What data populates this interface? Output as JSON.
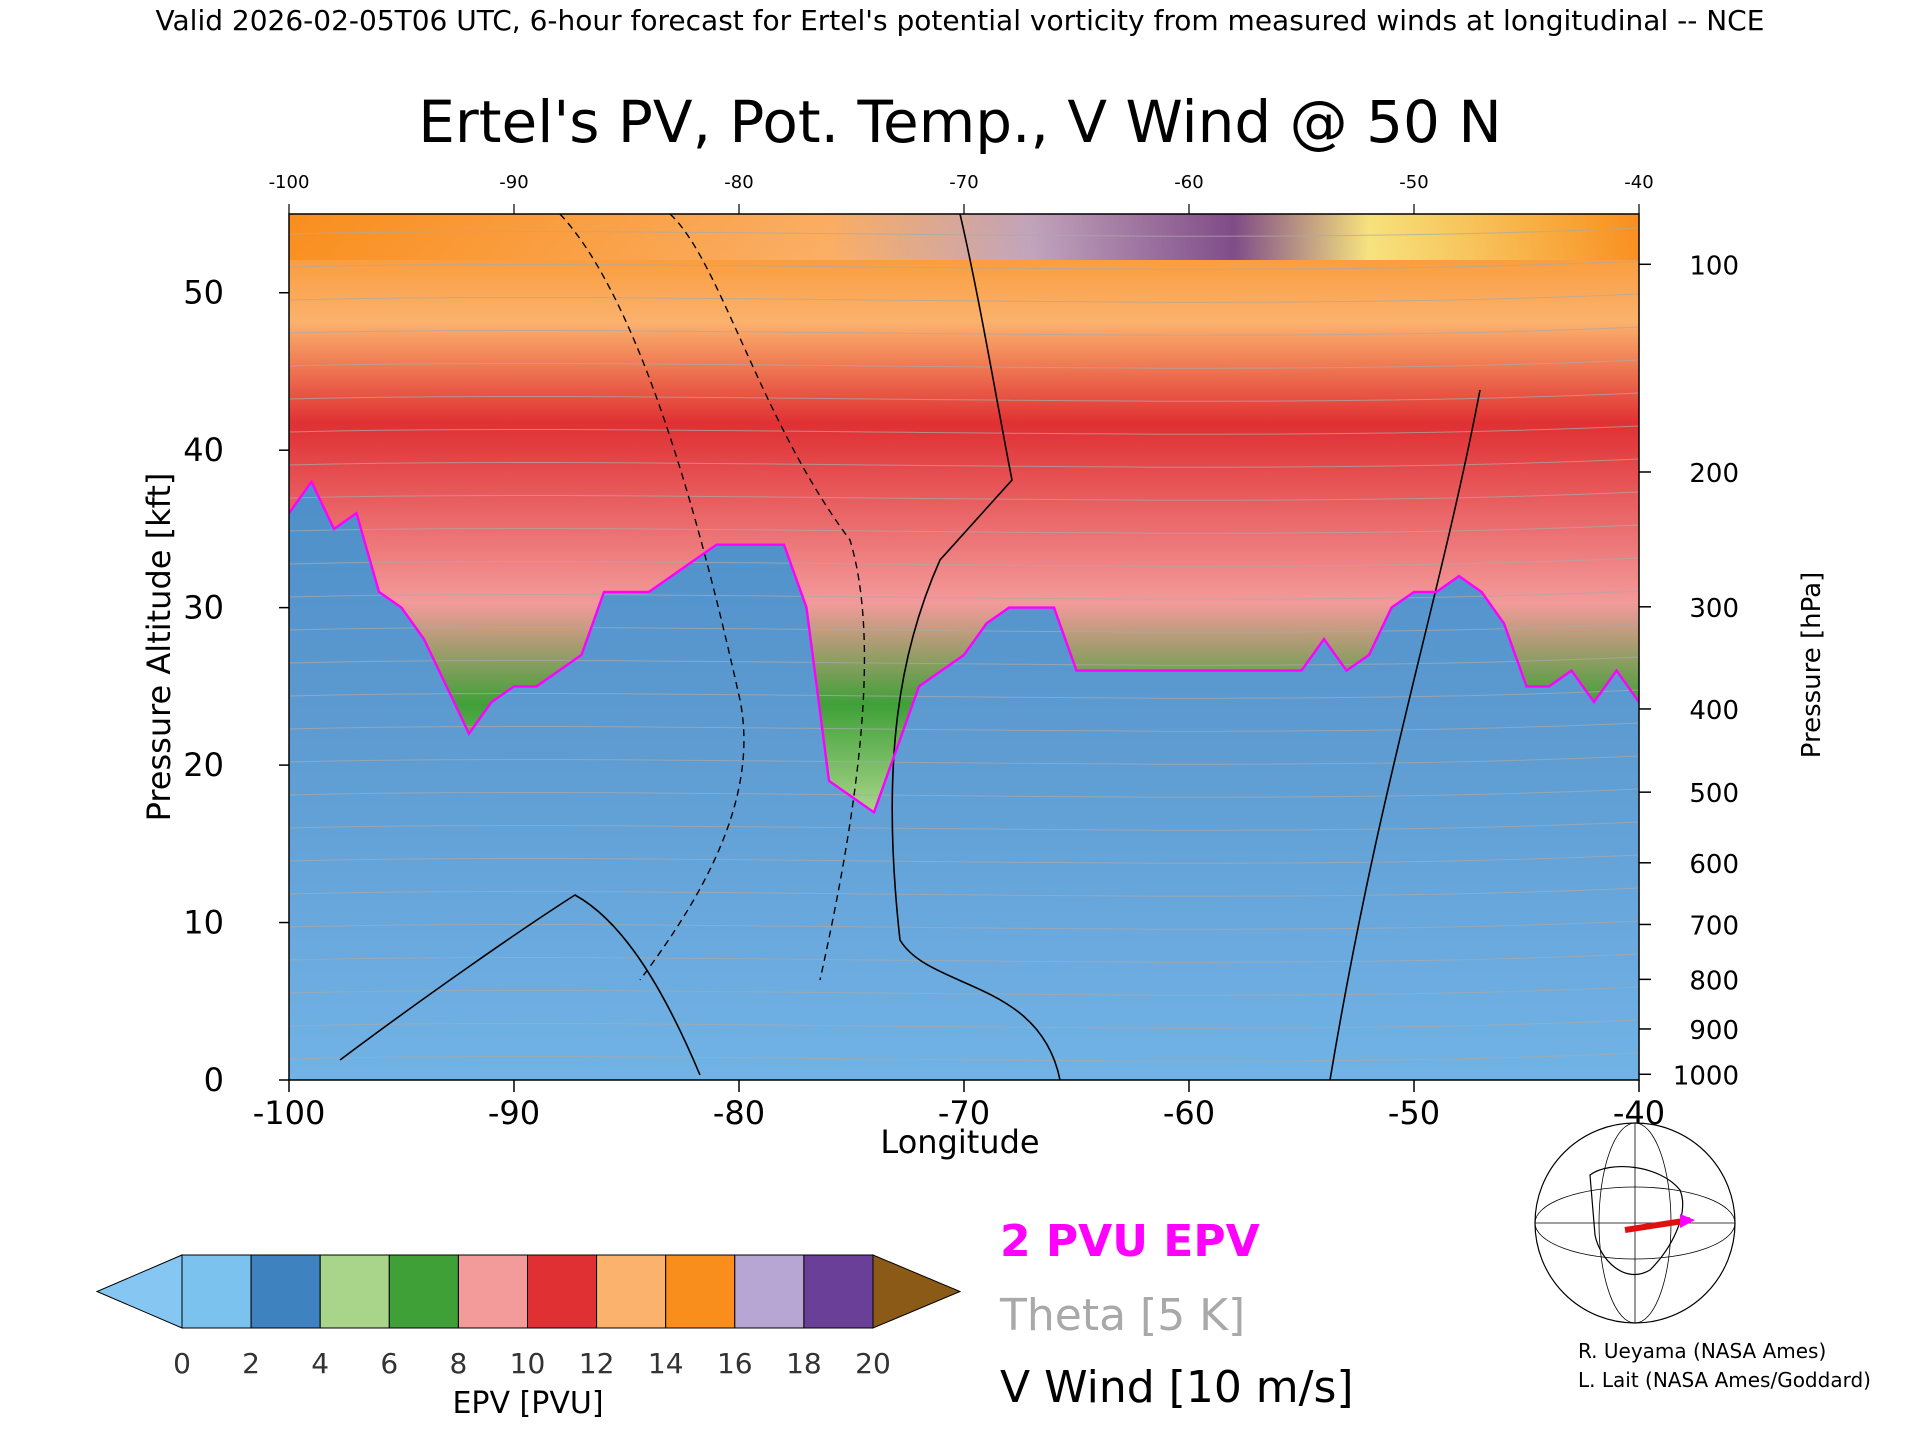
{
  "header": {
    "caption": "Valid 2026-02-05T06 UTC, 6-hour forecast for Ertel's potential vorticity from measured winds at longitudinal -- NCE"
  },
  "chart_data": {
    "type": "heatmap",
    "title": "Ertel's PV, Pot. Temp., V Wind @ 50 N",
    "xlabel": "Longitude",
    "ylabel": "Pressure Altitude [kft]",
    "y2label": "Pressure [hPa]",
    "xlim": [
      -100,
      -40
    ],
    "ylim": [
      0,
      55
    ],
    "x_ticks": [
      "-100",
      "-90",
      "-80",
      "-70",
      "-60",
      "-50",
      "-40"
    ],
    "x_ticks_top": [
      "-100",
      "-90",
      "-80",
      "-70",
      "-60",
      "-50",
      "-40"
    ],
    "y_ticks": [
      "0",
      "10",
      "20",
      "30",
      "40",
      "50"
    ],
    "pressure_ticks": [
      "100",
      "200",
      "300",
      "400",
      "500",
      "600",
      "700",
      "800",
      "900",
      "1000"
    ],
    "colorbar": {
      "label": "EPV [PVU]",
      "min": 0,
      "max": 20,
      "step": 2,
      "tick_labels": [
        "0",
        "2",
        "4",
        "6",
        "8",
        "10",
        "12",
        "14",
        "16",
        "18",
        "20"
      ],
      "colors": [
        "#7bc2ef",
        "#3e82c0",
        "#a9d58a",
        "#3fa038",
        "#f39a9a",
        "#e03033",
        "#fbb26d",
        "#f98e1d",
        "#b7a6d4",
        "#6a3f98",
        "#f6f08c"
      ],
      "over_color": "#8a5a16",
      "under_color": "#85c6f2"
    },
    "pv_top_kft": [
      [
        -100,
        36
      ],
      [
        -99,
        38
      ],
      [
        -98,
        35
      ],
      [
        -97,
        36
      ],
      [
        -96,
        31
      ],
      [
        -95,
        30
      ],
      [
        -94,
        28
      ],
      [
        -93,
        25
      ],
      [
        -92,
        22
      ],
      [
        -91,
        24
      ],
      [
        -90,
        25
      ],
      [
        -89,
        25
      ],
      [
        -88,
        26
      ],
      [
        -87,
        27
      ],
      [
        -86,
        31
      ],
      [
        -85,
        31
      ],
      [
        -84,
        31
      ],
      [
        -83,
        32
      ],
      [
        -82,
        33
      ],
      [
        -81,
        34
      ],
      [
        -80,
        34
      ],
      [
        -79,
        34
      ],
      [
        -78,
        34
      ],
      [
        -77,
        30
      ],
      [
        -76,
        19
      ],
      [
        -75,
        18
      ],
      [
        -74,
        17
      ],
      [
        -73,
        21
      ],
      [
        -72,
        25
      ],
      [
        -71,
        26
      ],
      [
        -70,
        27
      ],
      [
        -69,
        29
      ],
      [
        -68,
        30
      ],
      [
        -67,
        30
      ],
      [
        -66,
        30
      ],
      [
        -65,
        26
      ],
      [
        -62,
        26
      ],
      [
        -58,
        26
      ],
      [
        -55,
        26
      ],
      [
        -54,
        28
      ],
      [
        -53,
        26
      ],
      [
        -52,
        27
      ],
      [
        -51,
        30
      ],
      [
        -50,
        31
      ],
      [
        -49,
        31
      ],
      [
        -48,
        32
      ],
      [
        -47,
        31
      ],
      [
        -46,
        29
      ],
      [
        -45,
        25
      ],
      [
        -44,
        25
      ],
      [
        -43,
        26
      ],
      [
        -42,
        24
      ],
      [
        -41,
        26
      ],
      [
        -40,
        24
      ]
    ],
    "legend": {
      "pv_label": "2 PVU EPV",
      "theta_label": "Theta [5 K]",
      "wind_label": "V Wind [10 m/s]",
      "colors": {
        "pv": "#ff00ff",
        "theta": "#a9a9a9",
        "wind": "#000000"
      }
    },
    "credits": [
      "R. Ueyama (NASA Ames)",
      "L. Lait (NASA Ames/Goddard)"
    ],
    "locator_map_icon": "north-america-globe-map-icon"
  }
}
